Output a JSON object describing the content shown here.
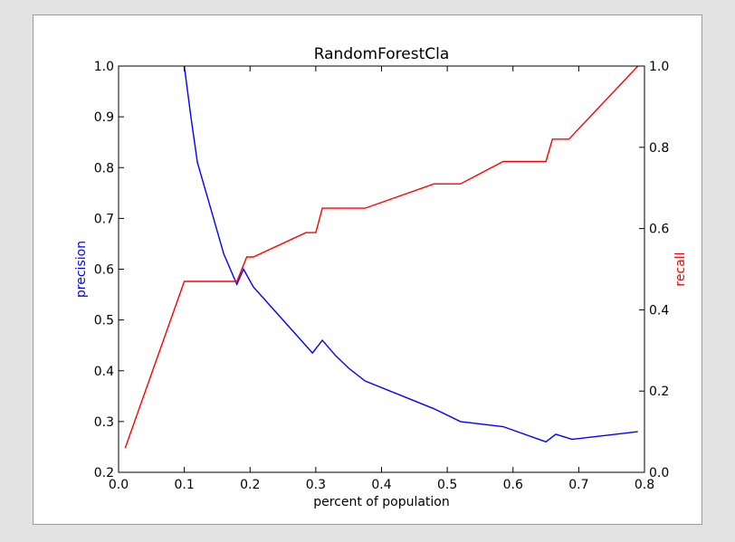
{
  "chart_data": {
    "type": "line",
    "title": "RandomForestCla",
    "xlabel": "percent of population",
    "ylabel_left": "precision",
    "ylabel_right": "recall",
    "xlim": [
      0.0,
      0.8
    ],
    "ylim_left": [
      0.2,
      1.0
    ],
    "ylim_right": [
      0.0,
      1.0
    ],
    "grid": false,
    "x_ticks": [
      "0.0",
      "0.1",
      "0.2",
      "0.3",
      "0.4",
      "0.5",
      "0.6",
      "0.7",
      "0.8"
    ],
    "y_left_ticks": [
      "0.2",
      "0.3",
      "0.4",
      "0.5",
      "0.6",
      "0.7",
      "0.8",
      "0.9",
      "1.0"
    ],
    "y_right_ticks": [
      "0.0",
      "0.2",
      "0.4",
      "0.6",
      "0.8",
      "1.0"
    ],
    "series": [
      {
        "name": "precision",
        "axis": "left",
        "color": "#0000ff",
        "x": [
          0.1,
          0.11,
          0.12,
          0.14,
          0.16,
          0.18,
          0.19,
          0.205,
          0.25,
          0.295,
          0.31,
          0.33,
          0.35,
          0.375,
          0.48,
          0.52,
          0.585,
          0.65,
          0.665,
          0.69,
          0.79
        ],
        "y": [
          1.0,
          0.9,
          0.81,
          0.72,
          0.63,
          0.57,
          0.6,
          0.565,
          0.5,
          0.435,
          0.46,
          0.43,
          0.405,
          0.38,
          0.325,
          0.3,
          0.29,
          0.26,
          0.275,
          0.265,
          0.28
        ]
      },
      {
        "name": "recall",
        "axis": "right",
        "color": "#ff0000",
        "x": [
          0.01,
          0.1,
          0.18,
          0.195,
          0.205,
          0.285,
          0.3,
          0.31,
          0.375,
          0.48,
          0.52,
          0.585,
          0.65,
          0.66,
          0.685,
          0.79
        ],
        "y": [
          0.06,
          0.47,
          0.47,
          0.53,
          0.53,
          0.59,
          0.59,
          0.65,
          0.65,
          0.71,
          0.71,
          0.765,
          0.765,
          0.82,
          0.82,
          1.0
        ]
      }
    ]
  }
}
